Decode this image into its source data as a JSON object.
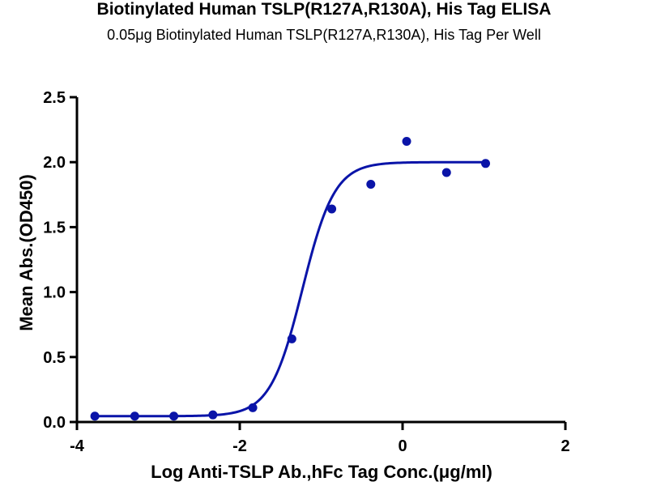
{
  "chart_data": {
    "type": "scatter",
    "title": "Biotinylated Human TSLP(R127A,R130A), His Tag ELISA",
    "subtitle": "0.05μg Biotinylated Human TSLP(R127A,R130A), His Tag Per Well",
    "xlabel": "Log Anti-TSLP Ab.,hFc Tag Conc.(μg/ml)",
    "ylabel": "Mean Abs.(OD450)",
    "xlim": [
      -4,
      2
    ],
    "ylim": [
      0,
      2.5
    ],
    "xticks": [
      "-4",
      "-2",
      "0",
      "2"
    ],
    "yticks": [
      "0.0",
      "0.5",
      "1.0",
      "1.5",
      "2.0",
      "2.5"
    ],
    "grid": false,
    "series": [
      {
        "x": [
          -3.78,
          -3.29,
          -2.81,
          -2.33,
          -1.84,
          -1.36,
          -0.87,
          -0.39,
          0.05,
          0.54,
          1.02
        ],
        "y": [
          0.045,
          0.045,
          0.045,
          0.055,
          0.11,
          0.64,
          1.64,
          1.83,
          2.16,
          1.92,
          1.99
        ],
        "color": "#0a14a8",
        "fit": {
          "model": "4PL",
          "bottom": 0.045,
          "top": 2.0,
          "logEC50": -1.23,
          "hillSlope": 2.2
        }
      }
    ]
  }
}
